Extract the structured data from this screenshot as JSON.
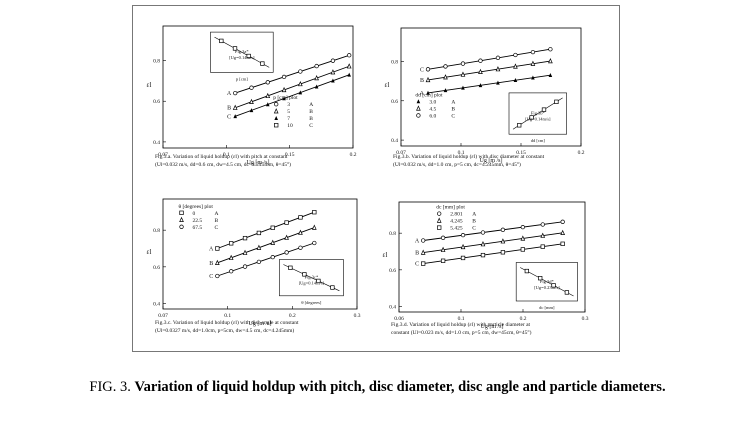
{
  "figure": {
    "label": "FIG. 3.",
    "title": "Variation of liquid holdup with pitch, disc diameter, disc angle and particle diameters."
  },
  "panels": [
    {
      "id": "a",
      "caption_line1": "Fig.3.a. Variation of liquid holdup (εl) with pitch at constant",
      "caption_line2": "(Ul=0.032 m/s, dd=0.6 cm, dw=4.5 cm, dc=4.245mm, θ=45°)",
      "xlabel": "Ug [m /s]",
      "ylabel": "εl",
      "legend_header": "p   [cm]   plot",
      "legend_rows": [
        [
          "○",
          "3",
          "A"
        ],
        [
          "△",
          "5",
          "B"
        ],
        [
          "▲",
          "7",
          "B"
        ],
        [
          "□",
          "10",
          "C"
        ]
      ],
      "inset_label_1": "Fig.3a*",
      "inset_label_2": "[Ug=0.14m/s]",
      "inset_xlabel": "p  [cm]",
      "series_labels": [
        "A",
        "B",
        "C"
      ],
      "x_ticks": [
        "0.07",
        "0.1",
        "0.15",
        "0.2"
      ],
      "y_ticks": [
        "0.4",
        "0.6",
        "0.8"
      ]
    },
    {
      "id": "b",
      "caption_line1": "Fig.3.b. Variation of liquid holdup (εl) with disc diameter at constant",
      "caption_line2": "(Ul=0.032 m/s, dd=1.0 cm, p=5 cm, dc=4.245mm, θ=45°)",
      "xlabel": "Ug [m /s]",
      "ylabel": "εl",
      "legend_header": "dd   [cm]   plot",
      "legend_rows": [
        [
          "▲",
          "3.0",
          "A"
        ],
        [
          "△",
          "4.5",
          "B"
        ],
        [
          "○",
          "6.0",
          "C"
        ]
      ],
      "inset_label_1": "Fig.3b*",
      "inset_label_2": "[Ug=0.14m/s]",
      "inset_xlabel": "dd [cm]",
      "series_labels": [
        "A",
        "B",
        "C"
      ],
      "x_ticks": [
        "0.07",
        "0.1",
        "0.15",
        "0.2"
      ],
      "y_ticks": [
        "0.4",
        "0.6",
        "0.8"
      ]
    },
    {
      "id": "c",
      "caption_line1": "Fig.3.c. Variation of liquid holdup (εl) with disc angle at constant",
      "caption_line2": "(Ul=0.0327 m/s, dd=1.0cm, p=5cm, dw=4.5 cm, dc=4.245mm)",
      "xlabel": "Ug [m /s]",
      "ylabel": "εl",
      "legend_header": "θ   [degrees]   plot",
      "legend_rows": [
        [
          "□",
          "0",
          "A"
        ],
        [
          "△",
          "22.5",
          "B"
        ],
        [
          "○",
          "67.5",
          "C"
        ]
      ],
      "inset_label_1": "Fig.3c*",
      "inset_label_2": "[Ug=0.14m/s]",
      "inset_xlabel": "θ [degrees]",
      "series_labels": [
        "A",
        "B",
        "C"
      ],
      "x_ticks": [
        "0.07",
        "0.1",
        "0.2",
        "0.3"
      ],
      "y_ticks": [
        "0.4",
        "0.6",
        "0.8"
      ]
    },
    {
      "id": "d",
      "caption_line1": "Fig.3.d. Variation of liquid holdup (εl) with particle diameter at",
      "caption_line2": "constant (Ul=0.023 m/s, dd=1.0 cm, p=5 cm, dw=45cm, θ=45°)",
      "xlabel": "Ug [m /s]",
      "ylabel": "εl",
      "legend_header": "dc   [mm]   plot",
      "legend_rows": [
        [
          "○",
          "2.801",
          "A"
        ],
        [
          "△",
          "4.245",
          "B"
        ],
        [
          "□",
          "5.425",
          "C"
        ]
      ],
      "inset_label_1": "Fig.3d*",
      "inset_label_2": "[Ug=0.23m/s]",
      "inset_xlabel": "dc [mm]",
      "series_labels": [
        "A",
        "B",
        "C"
      ],
      "x_ticks": [
        "0.06",
        "0.1",
        "0.2",
        "0.3"
      ],
      "y_ticks": [
        "0.4",
        "0.6",
        "0.8"
      ]
    }
  ]
}
